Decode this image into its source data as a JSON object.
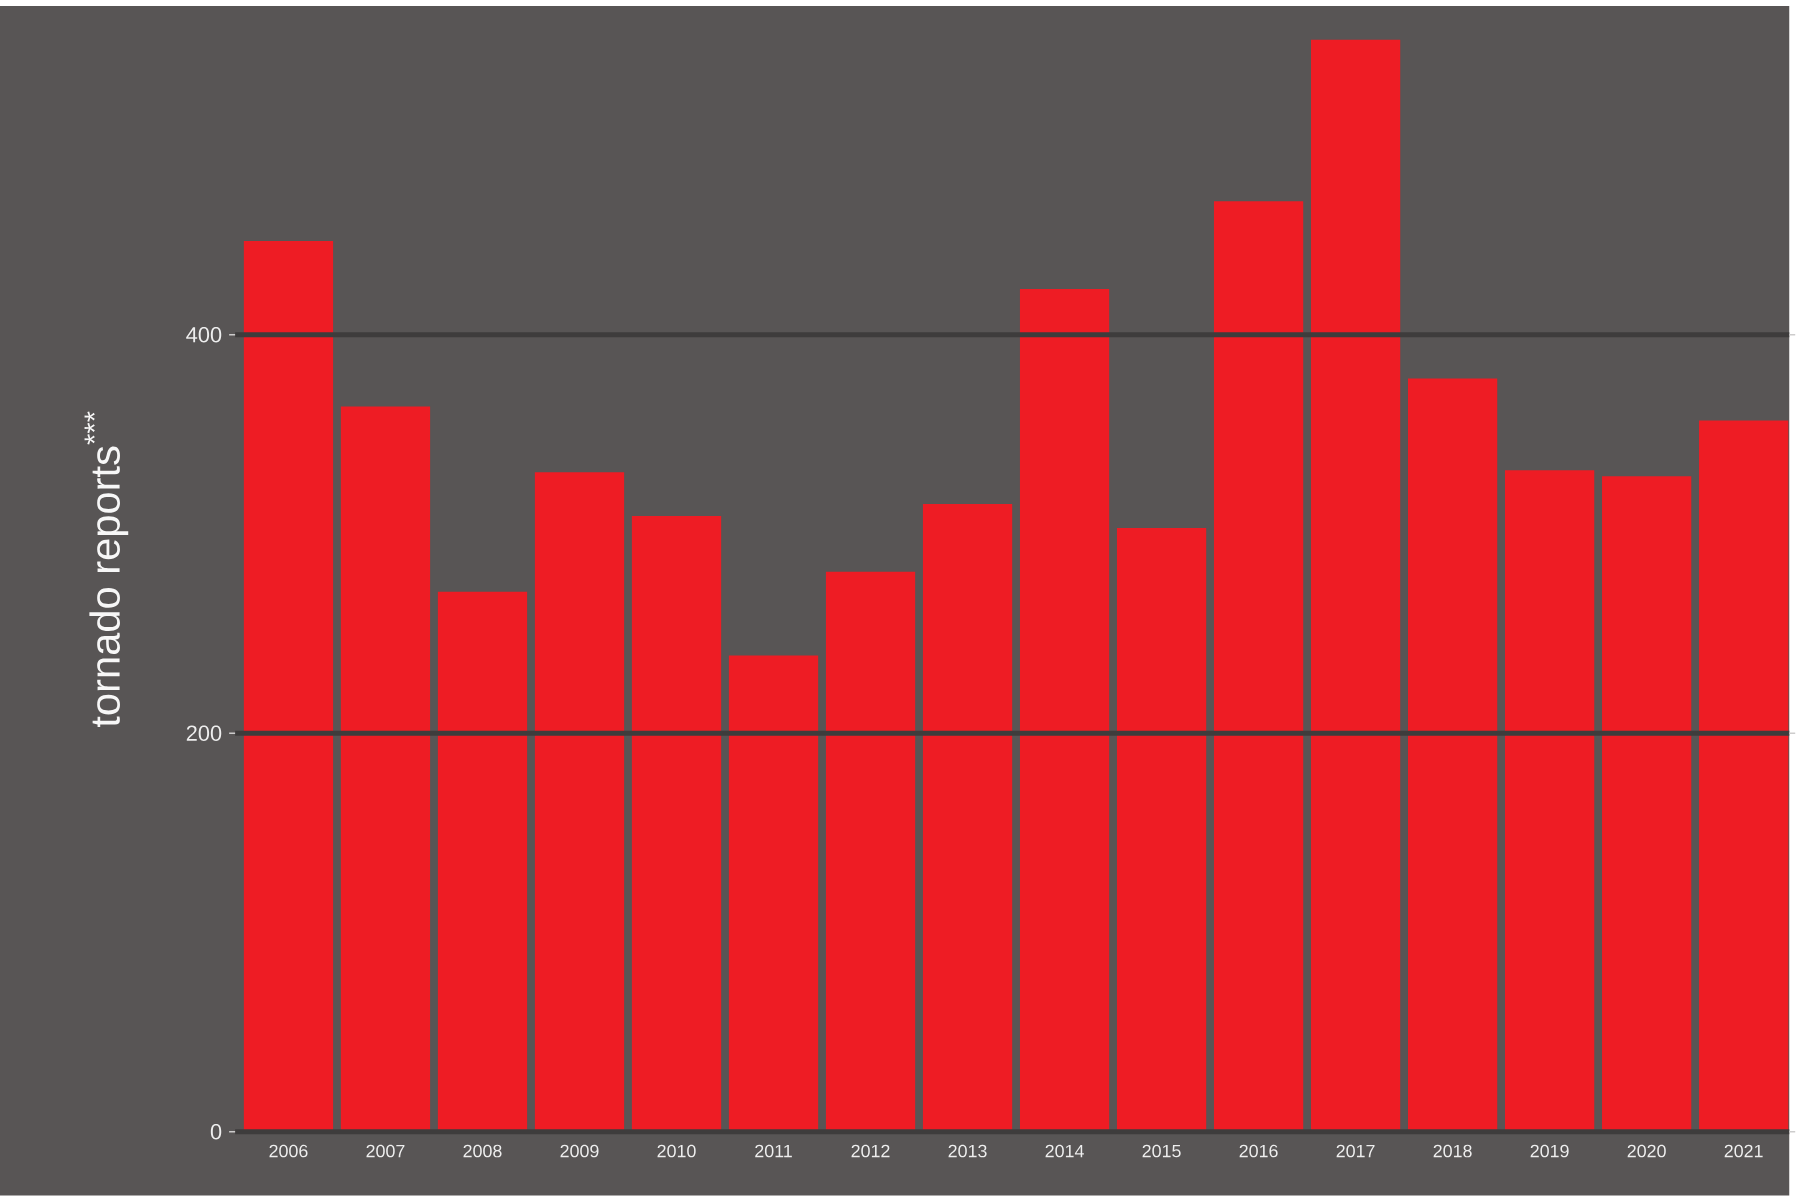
{
  "chart_data": {
    "type": "bar",
    "ylabel": "tornado reports$^{***}$",
    "categories": [
      "2006",
      "2007",
      "2008",
      "2009",
      "2010",
      "2011",
      "2012",
      "2013",
      "2014",
      "2015",
      "2016",
      "2017",
      "2018",
      "2019",
      "2020",
      "2021"
    ],
    "values": [
      447,
      364,
      271,
      331,
      309,
      239,
      281,
      315,
      423,
      303,
      467,
      548,
      378,
      332,
      329,
      357
    ],
    "color": "#ee1c24",
    "ylim": [
      0,
      565
    ],
    "yticks": [
      0,
      200,
      400
    ],
    "grid": "y"
  }
}
